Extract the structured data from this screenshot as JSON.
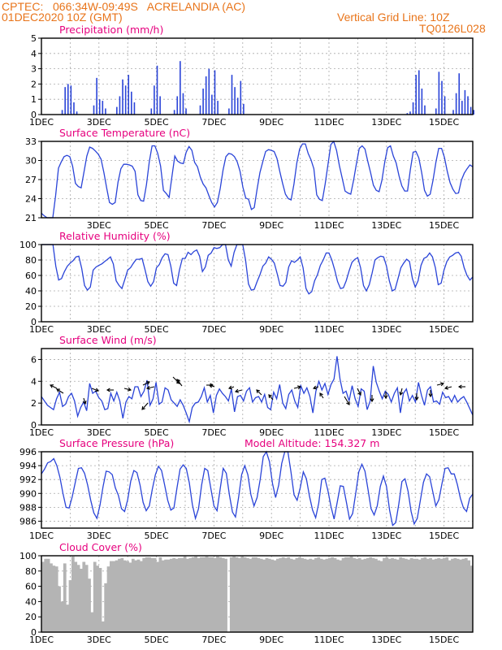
{
  "header": {
    "line1_left": "CPTEC:   066:34W-09:49S   ACRELANDIA (AC)",
    "line2_left": "01DEC2020 10Z (GMT)",
    "line1_right": "Vertical Grid Line: 10Z",
    "line2_right": "TQ0126L028"
  },
  "colors": {
    "series": "#2a44d8",
    "title": "#e6007e",
    "header": "#e8741a",
    "cloud": "#b4b4b4"
  },
  "chart_data": [
    {
      "type": "bar",
      "title": "Precipitation (mm/h)",
      "x_ticks": [
        "1DEC",
        "3DEC",
        "5DEC",
        "7DEC",
        "9DEC",
        "11DEC",
        "13DEC",
        "15DEC"
      ],
      "x_range_days": [
        0,
        15
      ],
      "ylim": [
        0,
        5
      ],
      "y_ticks": [
        0,
        1,
        2,
        3,
        4,
        5
      ],
      "bursts": [
        {
          "day": 0.7,
          "values": [
            0.3,
            1.8,
            2.0,
            1.9,
            0.8,
            0.2
          ]
        },
        {
          "day": 1.8,
          "values": [
            0.6,
            2.4,
            1.0,
            0.9,
            0.4
          ]
        },
        {
          "day": 2.6,
          "values": [
            0.5,
            1.2,
            2.3,
            1.9,
            2.6,
            1.5,
            0.8
          ]
        },
        {
          "day": 3.8,
          "values": [
            0.4,
            1.9,
            3.2,
            1.2
          ]
        },
        {
          "day": 4.6,
          "values": [
            0.3,
            1.2,
            3.5,
            1.4,
            0.4
          ]
        },
        {
          "day": 5.5,
          "values": [
            0.6,
            1.7,
            2.5,
            3.0,
            1.3,
            2.9,
            0.9
          ]
        },
        {
          "day": 6.5,
          "values": [
            0.4,
            2.6,
            1.8,
            1.1,
            2.2,
            0.7
          ]
        },
        {
          "day": 12.7,
          "values": [
            0.1,
            0.2,
            0.8,
            2.6,
            2.9,
            1.7,
            0.6
          ]
        },
        {
          "day": 13.7,
          "values": [
            0.4,
            2.8,
            2.2,
            1.2
          ]
        },
        {
          "day": 14.3,
          "values": [
            0.3,
            1.4,
            2.7,
            0.9,
            1.6,
            1.2,
            0.5,
            0.3
          ]
        }
      ]
    },
    {
      "type": "line",
      "title": "Surface Temperature (nC)",
      "x_ticks": [
        "3DEC",
        "5DEC",
        "7DEC",
        "9DEC",
        "11DEC",
        "13DEC",
        "15DEC"
      ],
      "ylim": [
        21,
        33
      ],
      "y_ticks": [
        21,
        24,
        27,
        30,
        33
      ],
      "y": [
        21.7,
        21.3,
        21.0,
        20.9,
        20.9,
        24.5,
        28.8,
        29.8,
        30.6,
        30.8,
        30.6,
        29.1,
        26.4,
        25.9,
        25.7,
        28.2,
        30.7,
        32.1,
        31.9,
        31.5,
        31.0,
        30.2,
        28.1,
        25.7,
        23.4,
        23.1,
        23.4,
        26.6,
        28.7,
        29.4,
        29.4,
        29.3,
        29.1,
        28.3,
        24.6,
        23.7,
        23.6,
        26.2,
        29.8,
        32.3,
        32.3,
        31.1,
        29.1,
        25.3,
        24.8,
        24.2,
        27.5,
        30.7,
        29.9,
        29.6,
        29.5,
        31.3,
        32.2,
        31.6,
        29.7,
        29.0,
        27.4,
        26.3,
        25.7,
        24.5,
        23.4,
        22.7,
        23.4,
        25.6,
        28.5,
        30.6,
        31.1,
        31.0,
        30.6,
        29.8,
        28.3,
        25.8,
        24.1,
        23.9,
        22.3,
        22.6,
        25.5,
        28.1,
        29.8,
        31.4,
        31.7,
        31.6,
        31.4,
        30.3,
        28.3,
        26.4,
        24.7,
        24.0,
        23.8,
        26.3,
        29.6,
        31.8,
        32.6,
        32.6,
        31.1,
        30.1,
        28.7,
        24.6,
        23.9,
        23.7,
        26.3,
        29.4,
        32.5,
        33.3,
        31.6,
        29.2,
        27.2,
        25.2,
        24.9,
        24.7,
        26.9,
        29.5,
        31.9,
        32.3,
        31.8,
        29.9,
        28.1,
        26.1,
        25.3,
        25.1,
        26.9,
        29.8,
        32.0,
        32.3,
        30.7,
        29.6,
        27.6,
        26.0,
        25.2,
        25.2,
        28.5,
        31.3,
        31.4,
        30.4,
        28.1,
        25.3,
        24.4,
        24.7,
        26.9,
        29.7,
        31.9,
        31.9,
        30.5,
        28.3,
        26.5,
        25.5,
        24.8,
        24.9,
        26.9,
        28.0,
        28.7,
        29.3,
        29.0
      ]
    },
    {
      "type": "line",
      "title": "Relative Humidity (%)",
      "x_ticks": [
        "1DEC",
        "3DEC",
        "5DEC",
        "7DEC",
        "9DEC",
        "11DEC",
        "13DEC",
        "15DEC"
      ],
      "ylim": [
        0,
        100
      ],
      "y_ticks": [
        0,
        20,
        40,
        60,
        80,
        100
      ],
      "y": [
        100,
        100,
        100,
        100,
        100,
        72,
        54,
        56,
        65,
        72,
        76,
        79,
        84,
        85,
        69,
        47,
        41,
        45,
        67,
        71,
        73,
        75,
        78,
        81,
        84,
        75,
        53,
        47,
        43,
        55,
        67,
        70,
        76,
        81,
        81,
        82,
        68,
        52,
        46,
        52,
        70,
        74,
        83,
        88,
        87,
        72,
        50,
        47,
        67,
        82,
        82,
        90,
        87,
        91,
        93,
        85,
        65,
        71,
        86,
        89,
        96,
        95,
        96,
        100,
        100,
        80,
        72,
        90,
        100,
        100,
        100,
        80,
        49,
        41,
        42,
        52,
        61,
        72,
        76,
        84,
        81,
        76,
        62,
        47,
        46,
        51,
        71,
        79,
        77,
        80,
        84,
        70,
        43,
        36,
        39,
        53,
        61,
        73,
        80,
        89,
        89,
        80,
        67,
        52,
        43,
        44,
        53,
        66,
        77,
        81,
        83,
        70,
        47,
        40,
        48,
        63,
        80,
        83,
        85,
        84,
        72,
        53,
        40,
        42,
        56,
        70,
        76,
        81,
        78,
        56,
        45,
        53,
        73,
        82,
        84,
        89,
        84,
        70,
        48,
        50,
        67,
        78,
        84,
        86,
        89,
        90,
        85,
        70,
        60,
        54,
        58
      ]
    },
    {
      "type": "line",
      "title": "Surface Wind (m/s)",
      "x_ticks": [
        "1DEC",
        "3DEC",
        "5DEC",
        "7DEC",
        "9DEC",
        "11DEC",
        "13DEC",
        "15DEC"
      ],
      "ylim": [
        0,
        7
      ],
      "y_ticks": [
        0,
        2,
        4,
        6
      ],
      "y": [
        2.6,
        2.2,
        1.8,
        1.6,
        1.4,
        2.4,
        3.0,
        1.7,
        1.9,
        2.6,
        2.9,
        2.2,
        0.8,
        1.6,
        2.1,
        1.3,
        3.8,
        2.9,
        3.1,
        2.5,
        2.2,
        1.4,
        1.5,
        2.9,
        2.2,
        3.0,
        2.2,
        0.6,
        2.1,
        2.6,
        2.4,
        3.5,
        3.5,
        2.6,
        3.1,
        4.1,
        1.8,
        2.4,
        3.9,
        1.9,
        2.1,
        3.4,
        3.2,
        2.3,
        2.0,
        1.7,
        2.3,
        1.8,
        1.1,
        0.3,
        1.6,
        2.0,
        2.1,
        2.6,
        3.4,
        2.1,
        2.7,
        1.1,
        2.7,
        3.3,
        2.9,
        2.6,
        2.2,
        3.3,
        1.2,
        2.6,
        2.7,
        2.2,
        3.1,
        3.4,
        2.1,
        2.5,
        2.6,
        2.1,
        2.8,
        1.6,
        1.4,
        3.0,
        2.4,
        3.7,
        2.0,
        1.5,
        2.8,
        3.2,
        2.2,
        1.6,
        3.6,
        2.9,
        3.4,
        2.6,
        1.1,
        3.1,
        4.0,
        3.2,
        3.8,
        2.8,
        3.7,
        4.2,
        6.3,
        4.2,
        2.9,
        3.1,
        2.2,
        3.6,
        2.4,
        1.7,
        3.3,
        3.1,
        1.4,
        2.2,
        5.4,
        3.9,
        3.1,
        2.4,
        3.1,
        2.8,
        2.1,
        2.9,
        3.4,
        1.1,
        2.9,
        3.3,
        2.2,
        2.7,
        2.1,
        3.9,
        2.7,
        1.8,
        3.2,
        3.5,
        2.1,
        2.2,
        1.9,
        3.0,
        2.5,
        2.6,
        2.1,
        2.7,
        2.1,
        2.4,
        2.6,
        2.1,
        1.5,
        0.9
      ]
    },
    {
      "type": "line",
      "title": "Surface Pressure (hPa)",
      "annotation": "Model Altitude: 154.327 m",
      "x_ticks": [
        "1DEC",
        "3DEC",
        "5DEC",
        "7DEC",
        "9DEC",
        "11DEC",
        "13DEC",
        "15DEC"
      ],
      "ylim": [
        985,
        996
      ],
      "y_ticks": [
        986,
        988,
        990,
        992,
        994,
        996
      ],
      "y": [
        992.8,
        993.5,
        994.4,
        994.6,
        995.0,
        994.0,
        992.3,
        990.0,
        988.0,
        987.9,
        989.5,
        991.6,
        993.6,
        993.7,
        992.9,
        991.2,
        989.0,
        987.2,
        986.4,
        988.3,
        991.0,
        993.2,
        993.1,
        992.7,
        990.8,
        989.7,
        987.8,
        987.4,
        989.1,
        991.8,
        993.3,
        993.0,
        991.2,
        988.7,
        987.5,
        988.2,
        990.6,
        992.7,
        993.9,
        993.3,
        991.2,
        989.0,
        987.6,
        987.9,
        990.8,
        993.5,
        994.1,
        993.6,
        991.5,
        988.4,
        986.4,
        987.8,
        991.2,
        993.6,
        993.3,
        990.7,
        988.2,
        987.5,
        990.6,
        993.6,
        992.9,
        989.8,
        987.3,
        986.6,
        989.4,
        992.7,
        994.0,
        992.7,
        989.8,
        988.2,
        989.4,
        992.0,
        995.3,
        996.1,
        994.6,
        991.4,
        989.4,
        991.2,
        994.3,
        996.3,
        996.0,
        993.1,
        989.8,
        989.0,
        990.8,
        993.1,
        992.1,
        989.6,
        987.6,
        986.5,
        988.6,
        992.0,
        992.2,
        990.4,
        988.1,
        986.3,
        988.7,
        991.1,
        991.0,
        988.7,
        986.3,
        987.1,
        990.0,
        993.1,
        994.2,
        993.2,
        990.6,
        987.8,
        986.9,
        988.2,
        991.0,
        992.5,
        991.0,
        987.6,
        985.4,
        985.8,
        988.5,
        991.7,
        992.1,
        990.3,
        987.4,
        985.6,
        986.4,
        989.0,
        991.6,
        992.8,
        992.4,
        990.3,
        988.2,
        989.1,
        991.4,
        993.6,
        993.7,
        992.8,
        992.8,
        991.3,
        989.3,
        987.9,
        987.4,
        989.3,
        989.9
      ]
    },
    {
      "type": "bar",
      "title": "Cloud Cover (%)",
      "x_ticks": [
        "1DEC",
        "3DEC",
        "5DEC",
        "7DEC",
        "9DEC",
        "11DEC",
        "13DEC",
        "15DEC"
      ],
      "ylim": [
        0,
        100
      ],
      "y_ticks": [
        0,
        20,
        40,
        60,
        80,
        100
      ],
      "y": [
        92,
        96,
        96,
        90,
        87,
        86,
        60,
        40,
        90,
        36,
        68,
        99,
        92,
        88,
        83,
        92,
        88,
        70,
        26,
        92,
        87,
        84,
        14,
        64,
        86,
        93,
        93,
        94,
        96,
        97,
        94,
        93,
        91,
        96,
        94,
        95,
        93,
        97,
        98,
        98,
        97,
        97,
        92,
        98,
        94,
        95,
        95,
        96,
        97,
        96,
        97,
        97,
        99,
        96,
        97,
        98,
        99,
        97,
        98,
        98,
        99,
        98,
        98,
        97,
        99,
        98,
        97,
        96,
        0,
        98,
        99,
        98,
        97,
        99,
        98,
        97,
        96,
        98,
        98,
        97,
        96,
        95,
        97,
        96,
        95,
        94,
        96,
        97,
        98,
        97,
        98,
        96,
        95,
        97,
        98,
        97,
        96,
        95,
        96,
        95,
        97,
        98,
        96,
        95,
        96,
        97,
        98,
        97,
        95,
        94,
        97,
        98,
        98,
        99,
        97,
        96,
        97,
        95,
        96,
        97,
        98,
        97,
        96,
        94,
        93,
        97,
        98,
        96,
        97,
        96,
        95,
        98,
        97,
        96,
        95,
        97,
        96,
        96,
        95,
        97,
        98,
        96,
        97,
        95,
        96,
        97,
        96,
        97,
        98,
        94,
        96,
        97,
        96,
        95,
        96,
        97,
        94,
        87
      ]
    }
  ]
}
